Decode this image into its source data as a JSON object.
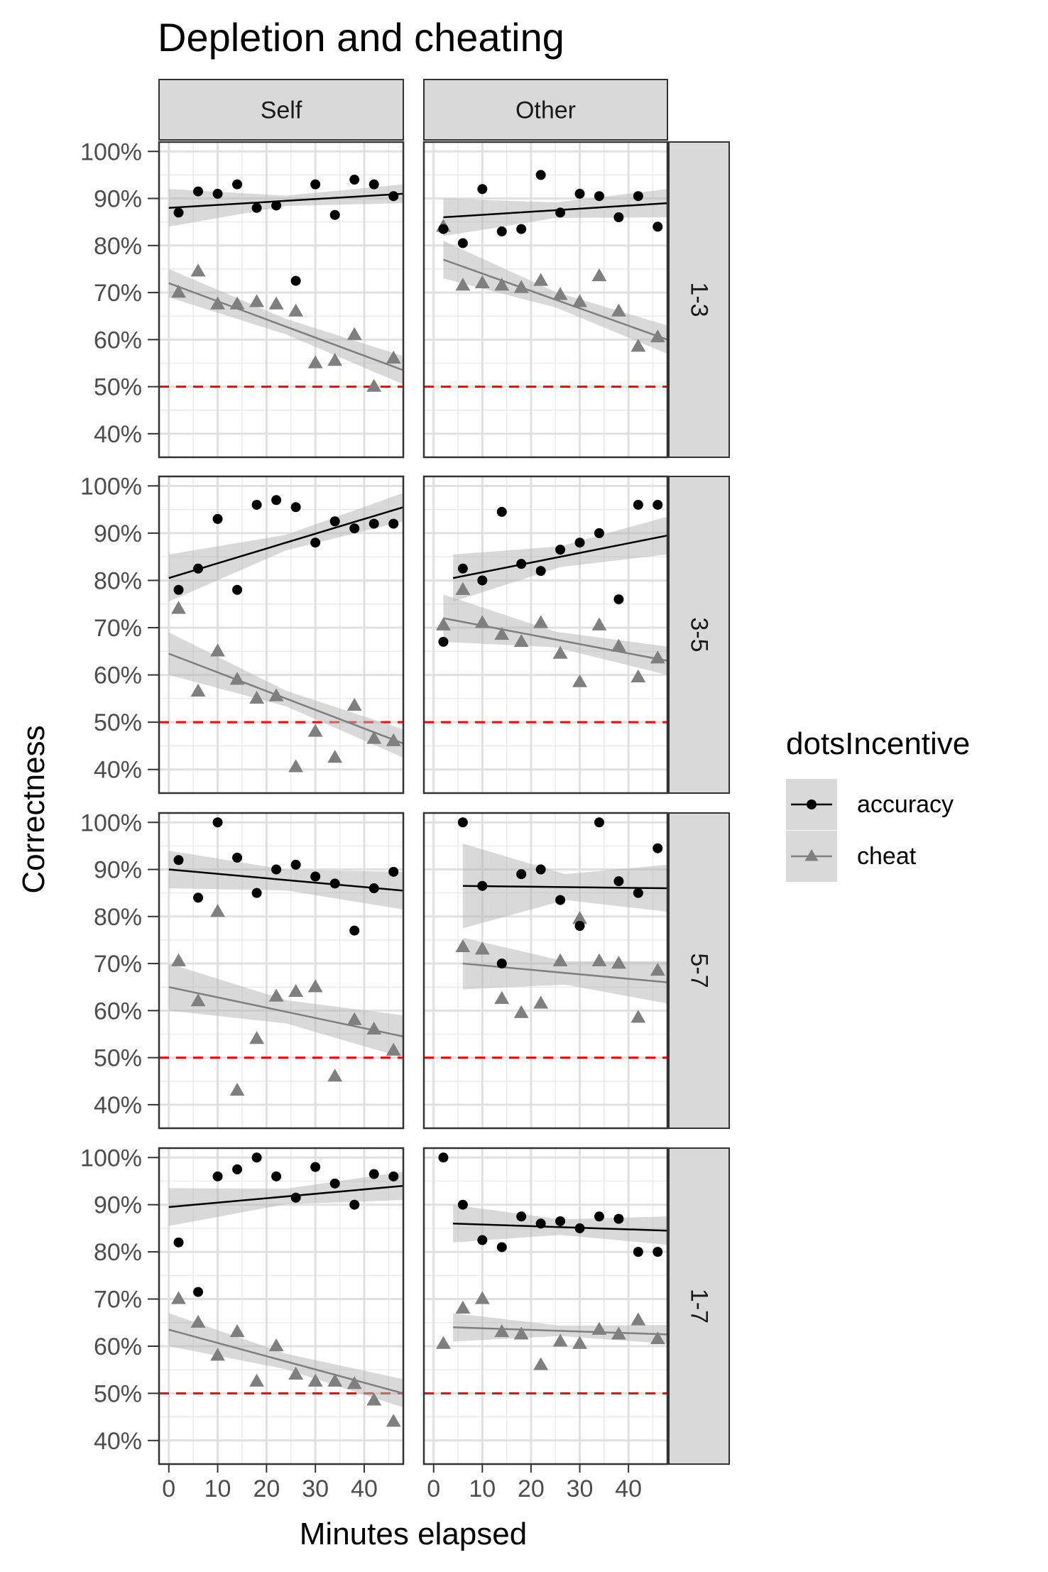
{
  "chart_data": {
    "type": "scatter",
    "title": "Depletion and cheating",
    "xlabel": "Minutes elapsed",
    "ylabel": "Correctness",
    "xlim": [
      -2,
      48
    ],
    "ylim": [
      35,
      102
    ],
    "x_ticks": [
      0,
      10,
      20,
      30,
      40
    ],
    "y_ticks": [
      40,
      50,
      60,
      70,
      80,
      90,
      100
    ],
    "y_tick_labels": [
      "40%",
      "50%",
      "60%",
      "70%",
      "80%",
      "90%",
      "100%"
    ],
    "reference_line": {
      "y": 50,
      "color": "#ff0000",
      "style": "dashed"
    },
    "grid": true,
    "legend": {
      "title": "dotsIncentive",
      "position": "right",
      "items": [
        {
          "label": "accuracy",
          "color": "#000000",
          "marker": "circle"
        },
        {
          "label": "cheat",
          "color": "#7f7f7f",
          "marker": "triangle"
        }
      ]
    },
    "facet_cols": [
      "Self",
      "Other"
    ],
    "facet_rows": [
      "1-3",
      "3-5",
      "5-7",
      "1-7"
    ],
    "panels": [
      {
        "col": "Self",
        "row": "1-3",
        "accuracy": {
          "x": [
            2,
            6,
            10,
            14,
            18,
            22,
            26,
            30,
            34,
            38,
            42,
            46
          ],
          "y": [
            87,
            91.5,
            91,
            93,
            88,
            88.5,
            72.5,
            93,
            86.5,
            94,
            93,
            90.5
          ],
          "fit": {
            "x": [
              0,
              48
            ],
            "y": [
              88,
              91
            ],
            "se": [
              4,
              2
            ]
          }
        },
        "cheat": {
          "x": [
            2,
            6,
            10,
            14,
            18,
            22,
            26,
            30,
            34,
            38,
            42,
            46
          ],
          "y": [
            70,
            74.5,
            67.5,
            67.5,
            68,
            67.5,
            66,
            55,
            55.5,
            61,
            50,
            56
          ],
          "fit": {
            "x": [
              0,
              48
            ],
            "y": [
              72,
              53.5
            ],
            "se": [
              3,
              3
            ]
          }
        }
      },
      {
        "col": "Other",
        "row": "1-3",
        "accuracy": {
          "x": [
            2,
            6,
            10,
            14,
            18,
            22,
            26,
            30,
            34,
            38,
            42,
            46
          ],
          "y": [
            83.5,
            80.5,
            92,
            83,
            83.5,
            95,
            87,
            91,
            90.5,
            86,
            90.5,
            84
          ],
          "fit": {
            "x": [
              2,
              48
            ],
            "y": [
              86,
              89
            ],
            "se": [
              4,
              3
            ]
          }
        },
        "cheat": {
          "x": [
            2,
            6,
            10,
            14,
            18,
            22,
            26,
            30,
            34,
            38,
            42,
            46
          ],
          "y": [
            84,
            71.5,
            72,
            71.5,
            71,
            72.5,
            69.5,
            68,
            73.5,
            66,
            58.5,
            60.5
          ],
          "fit": {
            "x": [
              2,
              48
            ],
            "y": [
              77,
              60
            ],
            "se": [
              4,
              3
            ]
          }
        }
      },
      {
        "col": "Self",
        "row": "3-5",
        "accuracy": {
          "x": [
            2,
            6,
            10,
            14,
            18,
            22,
            26,
            30,
            34,
            38,
            42,
            46
          ],
          "y": [
            78,
            82.5,
            93,
            78,
            96,
            97,
            95.5,
            88,
            92.5,
            91,
            92,
            92
          ],
          "fit": {
            "x": [
              0,
              48
            ],
            "y": [
              80.5,
              95.5
            ],
            "se": [
              5,
              3
            ]
          }
        },
        "cheat": {
          "x": [
            2,
            6,
            10,
            14,
            18,
            22,
            26,
            30,
            34,
            38,
            42,
            46
          ],
          "y": [
            74,
            56.5,
            65,
            59,
            55,
            55.5,
            40.5,
            48,
            42.5,
            53.5,
            46.5,
            46
          ],
          "fit": {
            "x": [
              0,
              48
            ],
            "y": [
              64.5,
              45.5
            ],
            "se": [
              4.5,
              3
            ]
          }
        }
      },
      {
        "col": "Other",
        "row": "3-5",
        "accuracy": {
          "x": [
            2,
            6,
            10,
            14,
            18,
            22,
            26,
            30,
            34,
            38,
            42,
            46
          ],
          "y": [
            67,
            82.5,
            80,
            94.5,
            83.5,
            82,
            86.5,
            88,
            90,
            76,
            96,
            96
          ],
          "fit": {
            "x": [
              4,
              48
            ],
            "y": [
              80.5,
              89.5
            ],
            "se": [
              5,
              4
            ]
          }
        },
        "cheat": {
          "x": [
            2,
            6,
            10,
            14,
            18,
            22,
            26,
            30,
            34,
            38,
            42,
            46
          ],
          "y": [
            70.5,
            78,
            71,
            68.5,
            67,
            71,
            64.5,
            58.5,
            70.5,
            66,
            59.5,
            63.5
          ],
          "fit": {
            "x": [
              2,
              48
            ],
            "y": [
              72,
              63
            ],
            "se": [
              5,
              3
            ]
          }
        }
      },
      {
        "col": "Self",
        "row": "5-7",
        "accuracy": {
          "x": [
            2,
            6,
            10,
            14,
            18,
            22,
            26,
            30,
            34,
            38,
            42,
            46
          ],
          "y": [
            92,
            84,
            100,
            92.5,
            85,
            90,
            91,
            88.5,
            87,
            77,
            86,
            89.5
          ],
          "fit": {
            "x": [
              0,
              48
            ],
            "y": [
              90,
              85.5
            ],
            "se": [
              4,
              4
            ]
          }
        },
        "cheat": {
          "x": [
            2,
            6,
            10,
            14,
            18,
            22,
            26,
            30,
            34,
            38,
            42,
            46
          ],
          "y": [
            70.5,
            62,
            81,
            43,
            54,
            63,
            64,
            65,
            46,
            58,
            56,
            51.5
          ],
          "fit": {
            "x": [
              0,
              48
            ],
            "y": [
              65,
              54.5
            ],
            "se": [
              5,
              4.5
            ]
          }
        }
      },
      {
        "col": "Other",
        "row": "5-7",
        "accuracy": {
          "x": [
            6,
            10,
            14,
            18,
            22,
            26,
            30,
            34,
            38,
            42,
            46
          ],
          "y": [
            100,
            86.5,
            70,
            89,
            90,
            83.5,
            78,
            100,
            87.5,
            85,
            94.5
          ],
          "fit": {
            "x": [
              6,
              48
            ],
            "y": [
              86.5,
              86
            ],
            "se": [
              9,
              5
            ]
          }
        },
        "cheat": {
          "x": [
            6,
            10,
            14,
            18,
            22,
            26,
            30,
            34,
            38,
            42,
            46
          ],
          "y": [
            73.5,
            73,
            62.5,
            59.5,
            61.5,
            70.5,
            79.5,
            70.5,
            70,
            58.5,
            68.5
          ],
          "fit": {
            "x": [
              6,
              48
            ],
            "y": [
              70,
              66
            ],
            "se": [
              5.5,
              4.5
            ]
          }
        }
      },
      {
        "col": "Self",
        "row": "1-7",
        "accuracy": {
          "x": [
            2,
            6,
            10,
            14,
            18,
            22,
            26,
            30,
            34,
            38,
            42,
            46
          ],
          "y": [
            82,
            71.5,
            96,
            97.5,
            100,
            96,
            91.5,
            98,
            94.5,
            90,
            96.5,
            96
          ],
          "fit": {
            "x": [
              0,
              48
            ],
            "y": [
              89.5,
              94
            ],
            "se": [
              4,
              3
            ]
          }
        },
        "cheat": {
          "x": [
            2,
            6,
            10,
            14,
            18,
            22,
            26,
            30,
            34,
            38,
            42,
            46
          ],
          "y": [
            70,
            65,
            58,
            63,
            52.5,
            60,
            54,
            52.5,
            52.5,
            52,
            48.5,
            44
          ],
          "fit": {
            "x": [
              0,
              48
            ],
            "y": [
              63.5,
              50
            ],
            "se": [
              3.5,
              3
            ]
          }
        }
      },
      {
        "col": "Other",
        "row": "1-7",
        "accuracy": {
          "x": [
            2,
            6,
            10,
            14,
            18,
            22,
            26,
            30,
            34,
            38,
            42,
            46
          ],
          "y": [
            100,
            90,
            82.5,
            81,
            87.5,
            86,
            86.5,
            85,
            87.5,
            87,
            80,
            80
          ],
          "fit": {
            "x": [
              4,
              48
            ],
            "y": [
              86,
              84.5
            ],
            "se": [
              4,
              3
            ]
          }
        },
        "cheat": {
          "x": [
            2,
            6,
            10,
            14,
            18,
            22,
            26,
            30,
            34,
            38,
            42,
            46
          ],
          "y": [
            60.5,
            68,
            70,
            63,
            62.5,
            56,
            61,
            60.5,
            63.5,
            62.5,
            65.5,
            61.5
          ],
          "fit": {
            "x": [
              4,
              48
            ],
            "y": [
              64,
              62.5
            ],
            "se": [
              3,
              2
            ]
          }
        }
      }
    ]
  }
}
